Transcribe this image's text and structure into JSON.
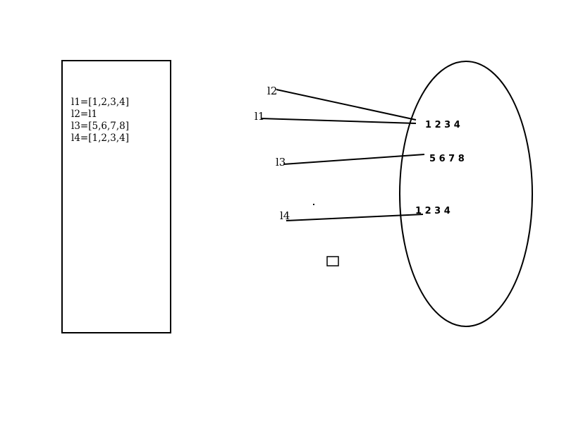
{
  "code_panel": {
    "lines": [
      "l1=[1,2,3,4]",
      "l2=l1",
      "l3=[5,6,7,8]",
      "l4=[1,2,3,4]"
    ]
  },
  "diagram": {
    "variables": {
      "l1": "l1",
      "l2": "l2",
      "l3": "l3",
      "l4": "l4"
    },
    "values": {
      "list_a": "1 2 3 4",
      "list_b": "5 6 7 8",
      "list_c": "1 2 3 4"
    }
  }
}
